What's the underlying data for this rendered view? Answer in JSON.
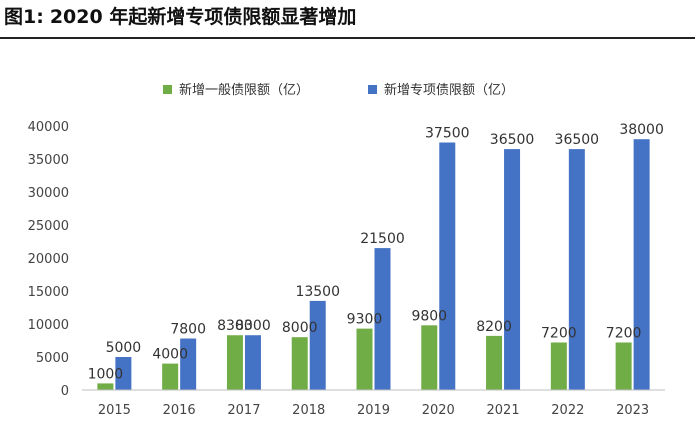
{
  "figure": {
    "label": "图1:",
    "title": "2020 年起新增专项债限额显著增加"
  },
  "chart_data": {
    "type": "bar",
    "categories": [
      "2015",
      "2016",
      "2017",
      "2018",
      "2019",
      "2020",
      "2021",
      "2022",
      "2023"
    ],
    "series": [
      {
        "name": "新增一般债限额（亿）",
        "color": "#70ad47",
        "values": [
          1000,
          4000,
          8300,
          8000,
          9300,
          9800,
          8200,
          7200,
          7200
        ],
        "labels": [
          "1000",
          "4000",
          "8300",
          "8000",
          "9300",
          "9800",
          "8200",
          "7200",
          "7200"
        ]
      },
      {
        "name": "新增专项债限额（亿）",
        "color": "#4472c4",
        "values": [
          5000,
          7800,
          8300,
          13500,
          21500,
          37500,
          36500,
          36500,
          38000
        ],
        "labels": [
          "5000",
          "7800",
          "8300",
          "13500",
          "21500",
          "37500",
          "36500",
          "36500",
          "38000"
        ]
      }
    ],
    "yticks": [
      "0",
      "5000",
      "10000",
      "15000",
      "20000",
      "25000",
      "30000",
      "35000",
      "40000"
    ],
    "ylim": [
      0,
      40000
    ],
    "grid": false,
    "legend_position": "top"
  }
}
